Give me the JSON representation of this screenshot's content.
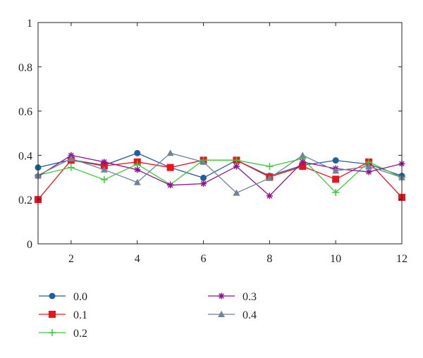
{
  "chart_data": {
    "type": "line",
    "xlim": [
      1,
      12
    ],
    "ylim": [
      0,
      1
    ],
    "x_ticks": [
      2,
      4,
      6,
      8,
      10,
      12
    ],
    "y_ticks": [
      0,
      0.2,
      0.4,
      0.6,
      0.8,
      1
    ],
    "y_tick_labels": [
      "0",
      "0.2",
      "0.4",
      "0.6",
      "0.8",
      "1"
    ],
    "x_tick_labels": [
      "2",
      "4",
      "6",
      "8",
      "10",
      "12"
    ],
    "grid": false,
    "legend_position": "below",
    "x": [
      1,
      2,
      3,
      4,
      5,
      6,
      7,
      8,
      9,
      10,
      11,
      12
    ],
    "series": [
      {
        "name": "0.0",
        "color": "#1f5fa0",
        "marker": "circle",
        "values": [
          0.345,
          0.38,
          0.355,
          0.41,
          0.345,
          0.298,
          0.378,
          0.307,
          0.355,
          0.377,
          0.36,
          0.307
        ]
      },
      {
        "name": "0.1",
        "color": "#e8161c",
        "marker": "square",
        "values": [
          0.2,
          0.378,
          0.352,
          0.37,
          0.345,
          0.378,
          0.378,
          0.302,
          0.35,
          0.292,
          0.37,
          0.21
        ]
      },
      {
        "name": "0.2",
        "color": "#3ec83a",
        "marker": "plus",
        "values": [
          0.31,
          0.345,
          0.29,
          0.36,
          0.268,
          0.378,
          0.378,
          0.35,
          0.385,
          0.232,
          0.37,
          0.3
        ]
      },
      {
        "name": "0.3",
        "color": "#8e138e",
        "marker": "asterisk",
        "values": [
          0.305,
          0.4,
          0.37,
          0.335,
          0.265,
          0.272,
          0.35,
          0.217,
          0.37,
          0.34,
          0.325,
          0.362
        ]
      },
      {
        "name": "0.4",
        "color": "#6f8496",
        "marker": "triangle",
        "values": [
          0.31,
          0.385,
          0.335,
          0.278,
          0.41,
          0.37,
          0.23,
          0.297,
          0.4,
          0.33,
          0.35,
          0.3
        ]
      }
    ]
  }
}
